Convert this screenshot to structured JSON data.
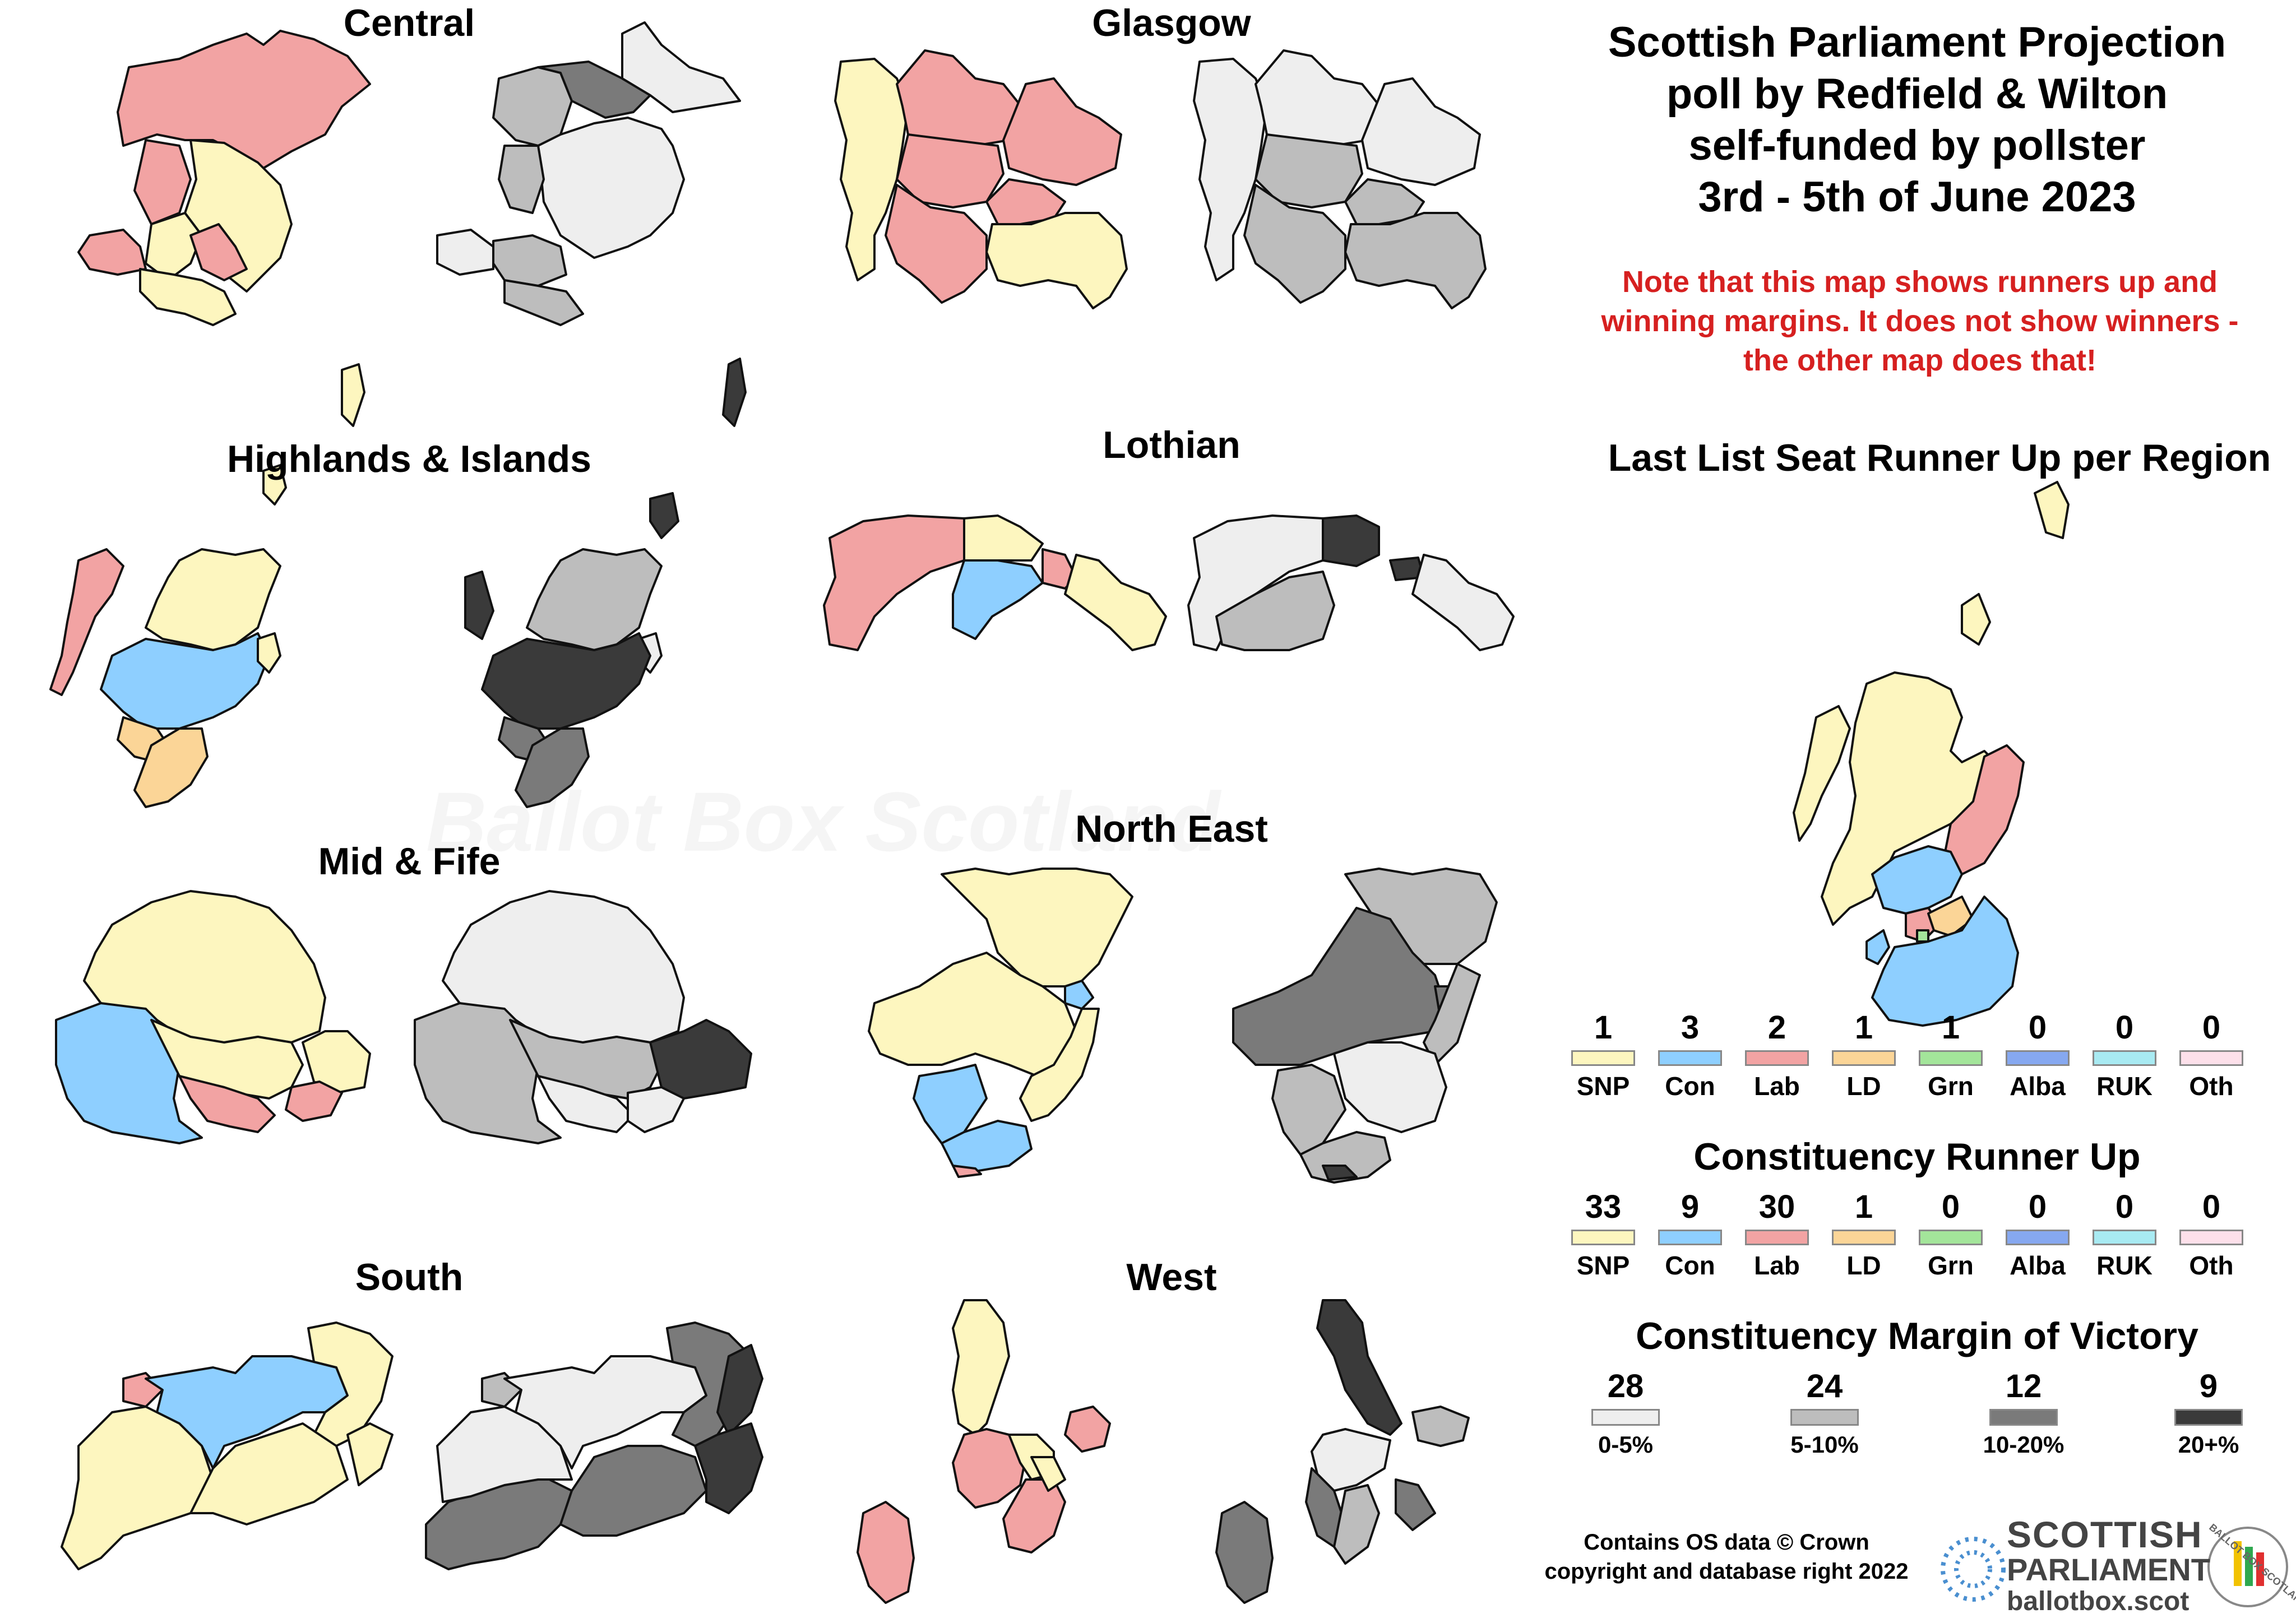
{
  "header": {
    "line1": "Scottish Parliament Projection",
    "line2": "poll by Redfield & Wilton",
    "line3": "self-funded by pollster",
    "line4": "3rd - 5th of June 2023"
  },
  "note": {
    "line1": "Note that this map shows runners up and",
    "line2": "winning margins. It does not show winners -",
    "line3": "the other map does that!"
  },
  "regions": {
    "central": "Central",
    "glasgow": "Glasgow",
    "highlands": "Highlands & Islands",
    "lothian": "Lothian",
    "mid_fife": "Mid & Fife",
    "north_east": "North East",
    "south": "South",
    "west": "West"
  },
  "colors": {
    "snp": "#fdf6bf",
    "con": "#8ecfff",
    "lab": "#f2a3a3",
    "ld": "#fbd597",
    "grn": "#a3e59a",
    "alba": "#86a8f0",
    "ruk": "#a8eaf2",
    "oth": "#fde0ea",
    "m0_5": "#eeeeee",
    "m5_10": "#bdbdbd",
    "m10_20": "#7a7a7a",
    "m20": "#3a3a3a"
  },
  "list_runner_up": {
    "title": "Last List Seat Runner Up per Region",
    "entries": [
      {
        "party": "SNP",
        "count": "1",
        "color": "#fdf6bf"
      },
      {
        "party": "Con",
        "count": "3",
        "color": "#8ecfff"
      },
      {
        "party": "Lab",
        "count": "2",
        "color": "#f2a3a3"
      },
      {
        "party": "LD",
        "count": "1",
        "color": "#fbd597"
      },
      {
        "party": "Grn",
        "count": "1",
        "color": "#a3e59a"
      },
      {
        "party": "Alba",
        "count": "0",
        "color": "#86a8f0"
      },
      {
        "party": "RUK",
        "count": "0",
        "color": "#a8eaf2"
      },
      {
        "party": "Oth",
        "count": "0",
        "color": "#fde0ea"
      }
    ]
  },
  "constituency_runner_up": {
    "title": "Constituency Runner Up",
    "entries": [
      {
        "party": "SNP",
        "count": "33",
        "color": "#fdf6bf"
      },
      {
        "party": "Con",
        "count": "9",
        "color": "#8ecfff"
      },
      {
        "party": "Lab",
        "count": "30",
        "color": "#f2a3a3"
      },
      {
        "party": "LD",
        "count": "1",
        "color": "#fbd597"
      },
      {
        "party": "Grn",
        "count": "0",
        "color": "#a3e59a"
      },
      {
        "party": "Alba",
        "count": "0",
        "color": "#86a8f0"
      },
      {
        "party": "RUK",
        "count": "0",
        "color": "#a8eaf2"
      },
      {
        "party": "Oth",
        "count": "0",
        "color": "#fde0ea"
      }
    ]
  },
  "margin_of_victory": {
    "title": "Constituency Margin of Victory",
    "entries": [
      {
        "label": "0-5%",
        "count": "28",
        "color": "#eeeeee"
      },
      {
        "label": "5-10%",
        "count": "24",
        "color": "#bdbdbd"
      },
      {
        "label": "10-20%",
        "count": "12",
        "color": "#7a7a7a"
      },
      {
        "label": "20+%",
        "count": "9",
        "color": "#3a3a3a"
      }
    ]
  },
  "credit": {
    "line1": "Contains OS data © Crown",
    "line2": "copyright and database right 2022"
  },
  "logo": {
    "line1": "SCOTTISH",
    "line2": "PARLIAMENT",
    "site": "ballotbox.scot",
    "badge": "BALLOT BOX SCOTLAND"
  },
  "watermark": "Ballot Box Scotland"
}
